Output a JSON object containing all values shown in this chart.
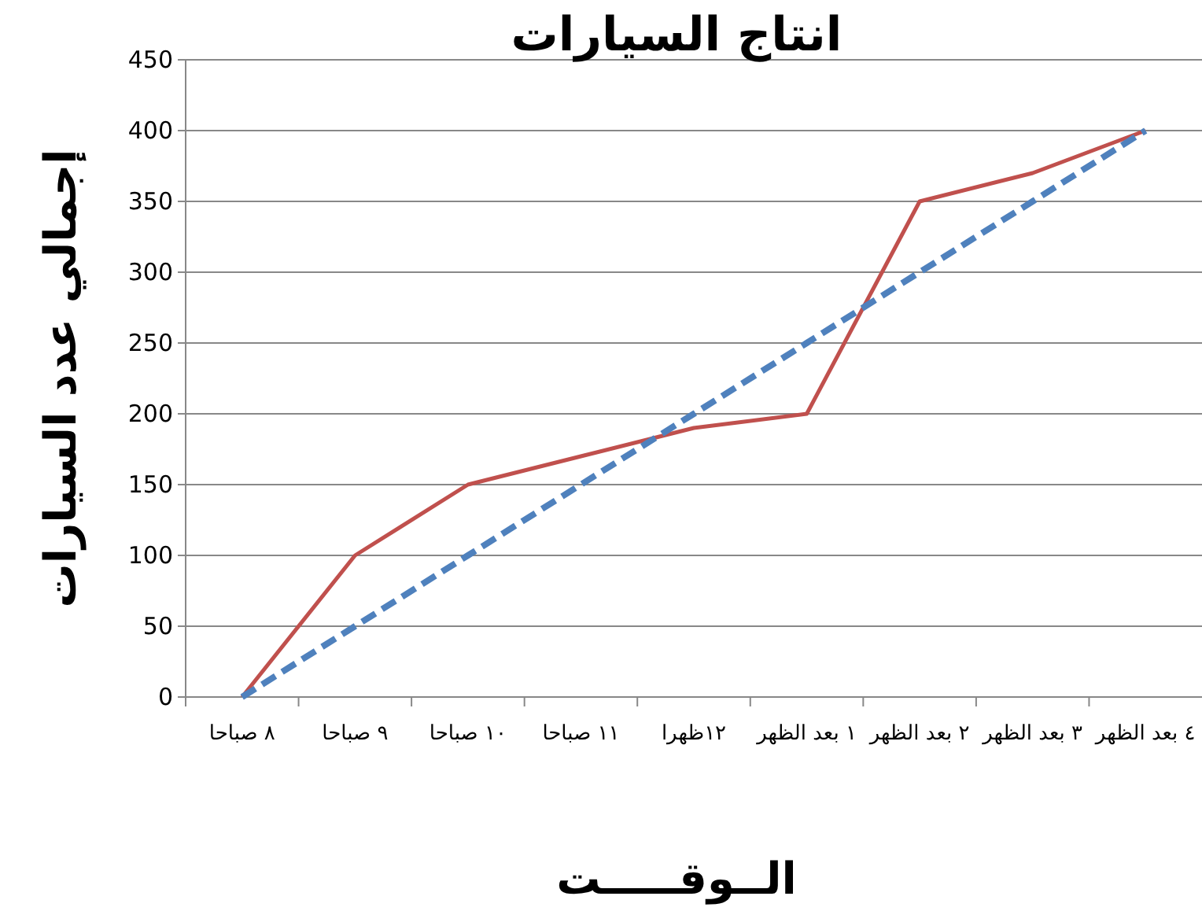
{
  "chart_data": {
    "type": "line",
    "title": "انتاج السيارات",
    "xlabel": "الــوقـــــت",
    "ylabel": "إجمالي عدد السيارات",
    "categories": [
      "٨ صباحا",
      "٩ صباحا",
      "١٠ صباحا",
      "١١ صباحا",
      "١٢ظهرا",
      "١ بعد الظهر",
      "٢ بعد الظهر",
      "٣ بعد الظهر",
      "٤ بعد الظهر"
    ],
    "series": [
      {
        "color": "#c0504d",
        "line_style": "solid",
        "values": [
          0,
          100,
          150,
          170,
          190,
          200,
          350,
          370,
          400
        ]
      },
      {
        "color": "#4f81bd",
        "line_style": "dashed",
        "values": [
          0,
          50,
          100,
          150,
          200,
          250,
          300,
          350,
          400
        ]
      }
    ],
    "ylim": [
      0,
      450
    ],
    "yticks": [
      0,
      50,
      100,
      150,
      200,
      250,
      300,
      350,
      400,
      450
    ],
    "grid": "y",
    "marker": "none"
  }
}
